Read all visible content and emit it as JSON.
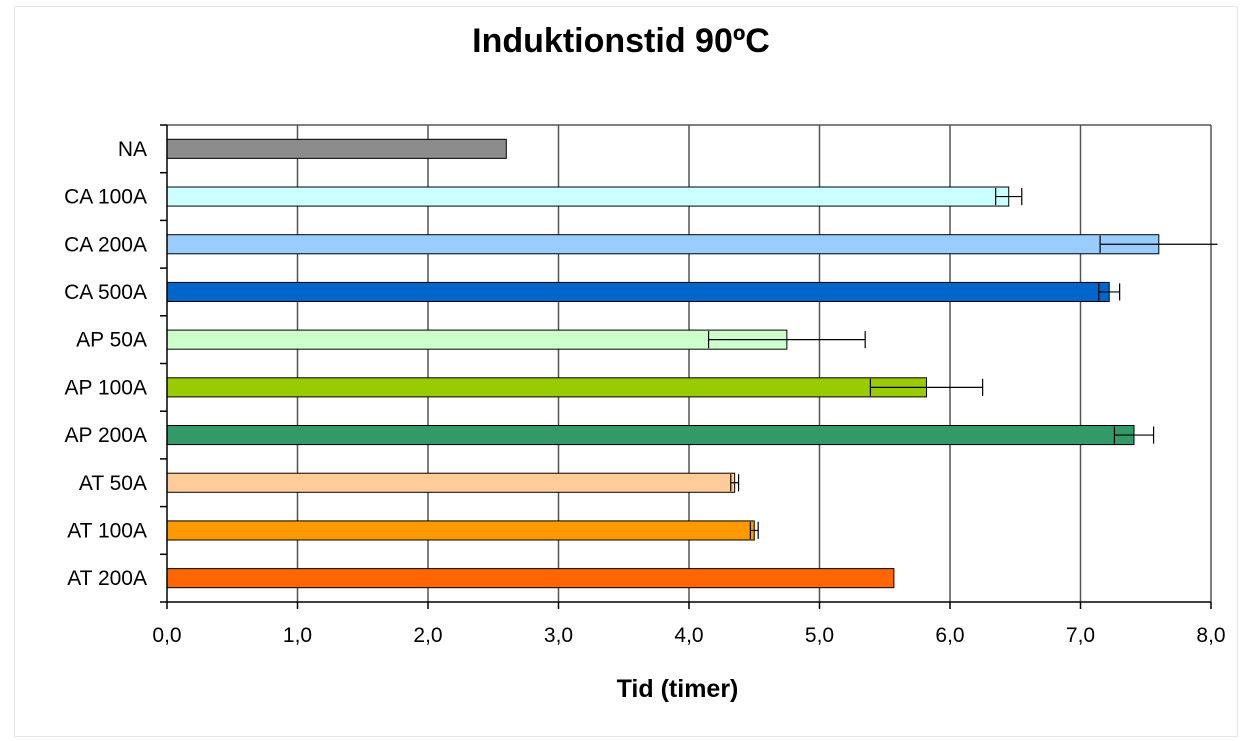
{
  "chart_data": {
    "type": "bar",
    "orientation": "horizontal",
    "title": "Induktionstid 90ºC",
    "xlabel": "Tid (timer)",
    "ylabel": "",
    "xlim": [
      0,
      8
    ],
    "x_ticks": [
      "0,0",
      "1,0",
      "2,0",
      "3,0",
      "4,0",
      "5,0",
      "6,0",
      "7,0",
      "8,0"
    ],
    "grid": "vertical",
    "legend": "none",
    "categories": [
      "NA",
      "CA 100A",
      "CA 200A",
      "CA 500A",
      "AP 50A",
      "AP 100A",
      "AP 200A",
      "AT 50A",
      "AT 100A",
      "AT 200A"
    ],
    "values": [
      2.6,
      6.45,
      7.6,
      7.22,
      4.75,
      5.82,
      7.41,
      4.35,
      4.5,
      5.57
    ],
    "errors": [
      null,
      0.1,
      0.45,
      0.08,
      0.6,
      0.43,
      0.15,
      0.03,
      0.03,
      null
    ],
    "colors": [
      "#8c8c8c",
      "#ccffff",
      "#99ccff",
      "#0066cc",
      "#ccffcc",
      "#99cc00",
      "#339966",
      "#ffcc99",
      "#ff9900",
      "#ff6600"
    ]
  }
}
